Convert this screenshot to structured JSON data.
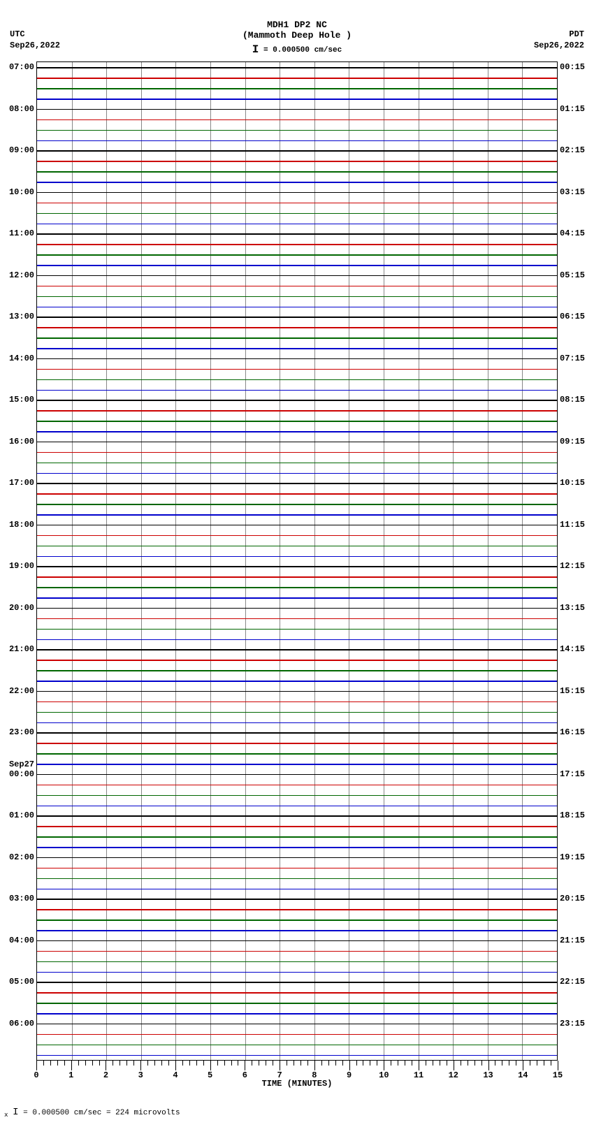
{
  "header": {
    "title1": "MDH1 DP2 NC",
    "title2": "(Mammoth Deep Hole )",
    "scale_label": "= 0.000500 cm/sec"
  },
  "top_labels": {
    "tz_left": "UTC",
    "date_left": "Sep26,2022",
    "tz_right": "PDT",
    "date_right": "Sep26,2022"
  },
  "footer_text": " = 0.000500 cm/sec =    224 microvolts",
  "chart": {
    "type": "seismograph",
    "background_color": "#ffffff",
    "grid_color": "#888888",
    "border_color": "#000000",
    "trace_colors": [
      "#000000",
      "#cc0000",
      "#006600",
      "#0000cc"
    ],
    "n_hours": 24,
    "lines_per_hour": 4,
    "font_family": "Courier New",
    "label_fontsize": 12,
    "title_fontsize": 13,
    "x_axis": {
      "min": 0,
      "max": 15,
      "major_step": 1,
      "minor_per_major": 5,
      "title": "TIME (MINUTES)",
      "labels": [
        "0",
        "1",
        "2",
        "3",
        "4",
        "5",
        "6",
        "7",
        "8",
        "9",
        "10",
        "11",
        "12",
        "13",
        "14",
        "15"
      ]
    },
    "left_labels": [
      "07:00",
      "08:00",
      "09:00",
      "10:00",
      "11:00",
      "12:00",
      "13:00",
      "14:00",
      "15:00",
      "16:00",
      "17:00",
      "18:00",
      "19:00",
      "20:00",
      "21:00",
      "22:00",
      "23:00",
      "00:00",
      "01:00",
      "02:00",
      "03:00",
      "04:00",
      "05:00",
      "06:00"
    ],
    "left_day_break": {
      "index": 17,
      "label": "Sep27"
    },
    "right_labels": [
      "00:15",
      "01:15",
      "02:15",
      "03:15",
      "04:15",
      "05:15",
      "06:15",
      "07:15",
      "08:15",
      "09:15",
      "10:15",
      "11:15",
      "12:15",
      "13:15",
      "14:15",
      "15:15",
      "16:15",
      "17:15",
      "18:15",
      "19:15",
      "20:15",
      "21:15",
      "22:15",
      "23:15"
    ]
  }
}
